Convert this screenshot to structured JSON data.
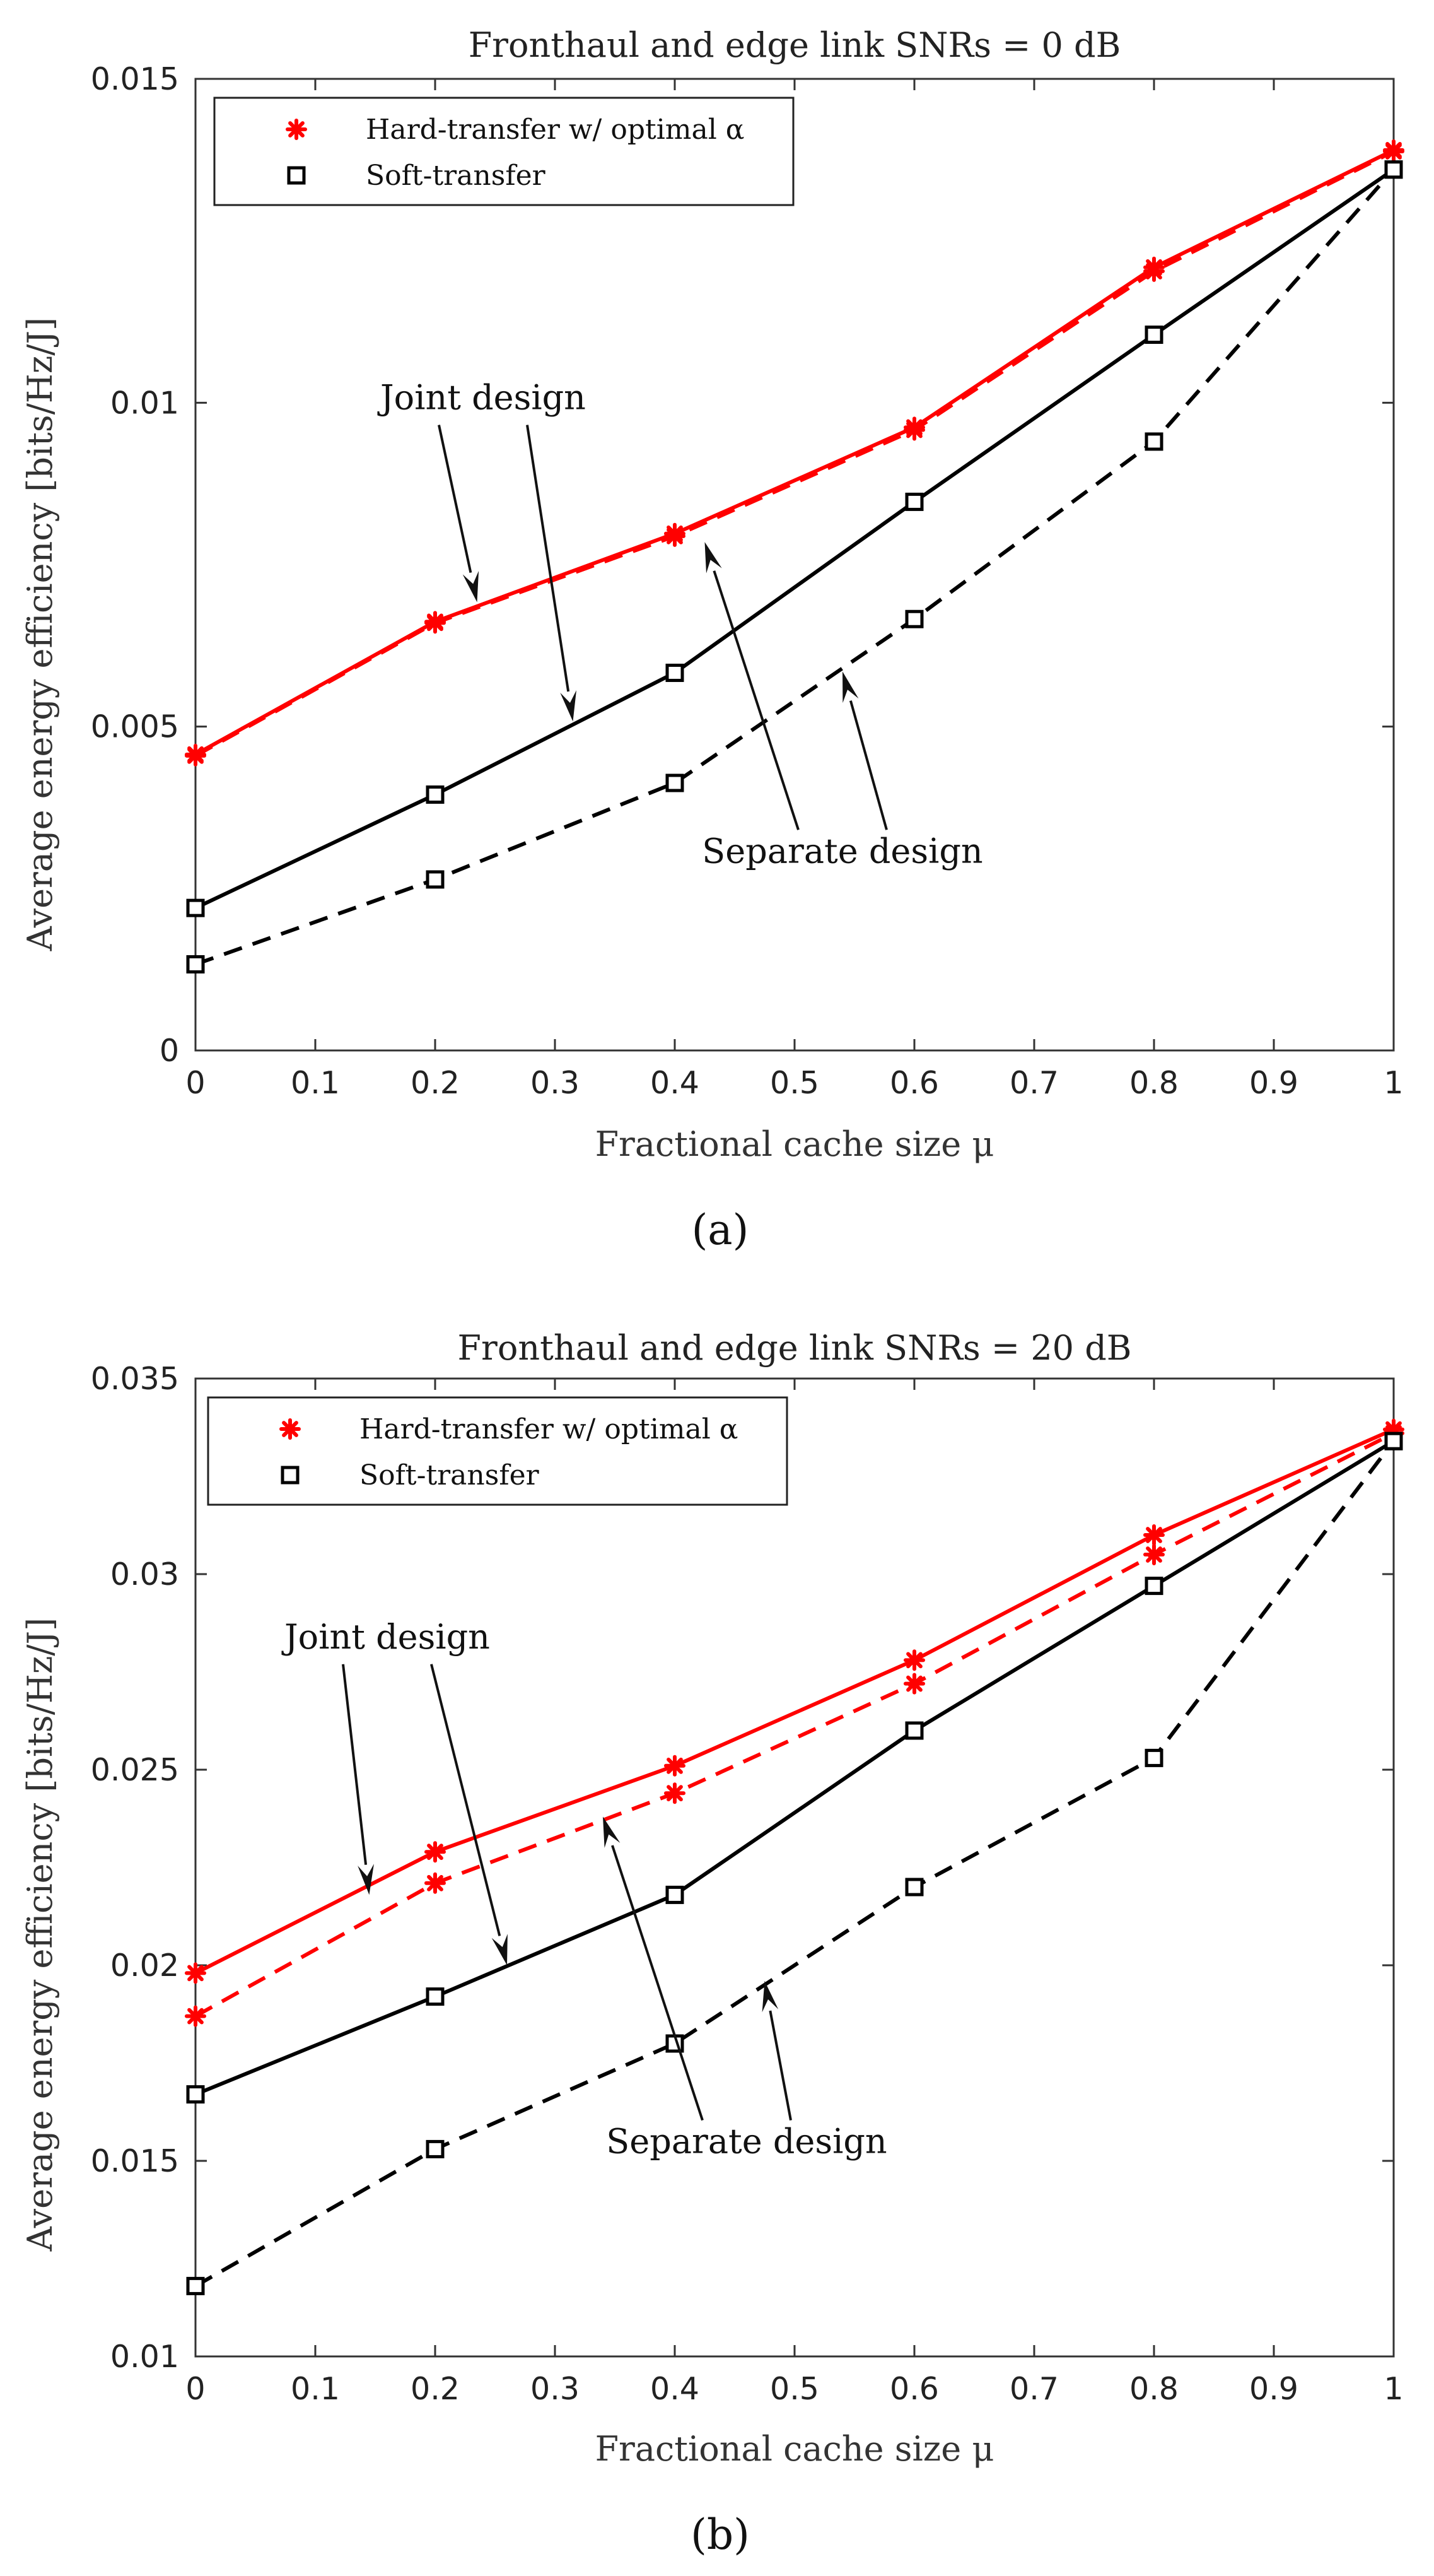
{
  "chart_data": [
    {
      "type": "line",
      "panel": "a",
      "caption": "(a)",
      "title": "Fronthaul and edge link SNRs = 0 dB",
      "xlabel": "Fractional cache size μ",
      "ylabel": "Average energy efficiency [bits/Hz/J]",
      "xlim": [
        0,
        1
      ],
      "ylim": [
        0,
        0.015
      ],
      "xticks": [
        0,
        0.1,
        0.2,
        0.3,
        0.4,
        0.5,
        0.6,
        0.7,
        0.8,
        0.9,
        1
      ],
      "xtick_labels": [
        "0",
        "0.1",
        "0.2",
        "0.3",
        "0.4",
        "0.5",
        "0.6",
        "0.7",
        "0.8",
        "0.9",
        "1"
      ],
      "yticks": [
        0,
        0.005,
        0.01,
        0.015
      ],
      "ytick_labels": [
        "0",
        "0.005",
        "0.01",
        "0.015"
      ],
      "grid": false,
      "legend_position": "top-left",
      "legend": [
        {
          "label": "Hard-transfer w/ optimal α",
          "marker": "star",
          "color": "#ff0000"
        },
        {
          "label": "Soft-transfer",
          "marker": "square",
          "color": "#000000"
        }
      ],
      "x": [
        0,
        0.2,
        0.4,
        0.6,
        0.8,
        1
      ],
      "series": [
        {
          "name": "Hard-transfer, joint design",
          "color": "#ff0000",
          "dash": "solid",
          "marker": "star",
          "values": [
            0.00457,
            0.00662,
            0.00798,
            0.00962,
            0.01209,
            0.0139
          ]
        },
        {
          "name": "Hard-transfer, separate design",
          "color": "#ff0000",
          "dash": "dashed",
          "marker": "star",
          "values": [
            0.00455,
            0.0066,
            0.00794,
            0.00958,
            0.01203,
            0.01388
          ]
        },
        {
          "name": "Soft-transfer, joint design",
          "color": "#000000",
          "dash": "solid",
          "marker": "square",
          "values": [
            0.0022,
            0.00395,
            0.00583,
            0.00847,
            0.01105,
            0.0136
          ]
        },
        {
          "name": "Soft-transfer, separate design",
          "color": "#000000",
          "dash": "dashed",
          "marker": "square",
          "values": [
            0.00133,
            0.00264,
            0.00413,
            0.00666,
            0.0094,
            0.0136
          ]
        }
      ],
      "annotations": [
        {
          "text": "Joint design",
          "at": [
            0.24,
            0.0099
          ],
          "arrows_to": [
            [
              0.235,
              0.00692
            ],
            [
              0.315,
              0.00508
            ]
          ]
        },
        {
          "text": "Separate design",
          "at": [
            0.54,
            0.0029
          ],
          "arrows_to": [
            [
              0.425,
              0.00785
            ],
            [
              0.54,
              0.00585
            ]
          ]
        }
      ]
    },
    {
      "type": "line",
      "panel": "b",
      "caption": "(b)",
      "title": "Fronthaul and edge link SNRs = 20 dB",
      "xlabel": "Fractional cache size μ",
      "ylabel": "Average energy efficiency [bits/Hz/J]",
      "xlim": [
        0,
        1
      ],
      "ylim": [
        0.01,
        0.035
      ],
      "xticks": [
        0,
        0.1,
        0.2,
        0.3,
        0.4,
        0.5,
        0.6,
        0.7,
        0.8,
        0.9,
        1
      ],
      "xtick_labels": [
        "0",
        "0.1",
        "0.2",
        "0.3",
        "0.4",
        "0.5",
        "0.6",
        "0.7",
        "0.8",
        "0.9",
        "1"
      ],
      "yticks": [
        0.01,
        0.015,
        0.02,
        0.025,
        0.03,
        0.035
      ],
      "ytick_labels": [
        "0.01",
        "0.015",
        "0.02",
        "0.025",
        "0.03",
        "0.035"
      ],
      "grid": false,
      "legend_position": "top-left",
      "legend": [
        {
          "label": "Hard-transfer w/ optimal α",
          "marker": "star",
          "color": "#ff0000"
        },
        {
          "label": "Soft-transfer",
          "marker": "square",
          "color": "#000000"
        }
      ],
      "x": [
        0,
        0.2,
        0.4,
        0.6,
        0.8,
        1
      ],
      "series": [
        {
          "name": "Hard-transfer, joint design",
          "color": "#ff0000",
          "dash": "solid",
          "marker": "star",
          "values": [
            0.0198,
            0.0229,
            0.0251,
            0.0278,
            0.031,
            0.0337
          ]
        },
        {
          "name": "Hard-transfer, separate design",
          "color": "#ff0000",
          "dash": "dashed",
          "marker": "star",
          "values": [
            0.0187,
            0.0221,
            0.0244,
            0.0272,
            0.0305,
            0.0336
          ]
        },
        {
          "name": "Soft-transfer, joint design",
          "color": "#000000",
          "dash": "solid",
          "marker": "square",
          "values": [
            0.0167,
            0.0192,
            0.0218,
            0.026,
            0.0297,
            0.0334
          ]
        },
        {
          "name": "Soft-transfer, separate design",
          "color": "#000000",
          "dash": "dashed",
          "marker": "square",
          "values": [
            0.0118,
            0.0153,
            0.018,
            0.022,
            0.0253,
            0.0334
          ]
        }
      ],
      "annotations": [
        {
          "text": "Joint design",
          "at": [
            0.16,
            0.0281
          ],
          "arrows_to": [
            [
              0.145,
              0.0218
            ],
            [
              0.26,
              0.02
            ]
          ]
        },
        {
          "text": "Separate design",
          "at": [
            0.46,
            0.0152
          ],
          "arrows_to": [
            [
              0.34,
              0.0238
            ],
            [
              0.475,
              0.0196
            ]
          ]
        }
      ]
    }
  ]
}
